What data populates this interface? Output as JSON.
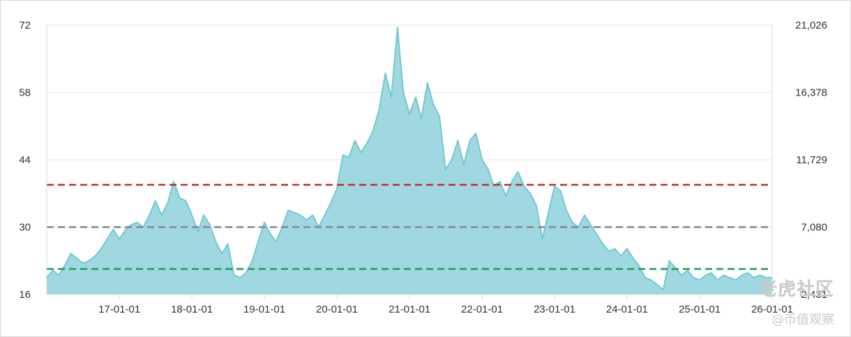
{
  "chart_data": {
    "type": "area",
    "x_ticks": [
      "17-01-01",
      "18-01-01",
      "19-01-01",
      "20-01-01",
      "21-01-01",
      "22-01-01",
      "23-01-01",
      "24-01-01",
      "25-01-01",
      "26-01-01"
    ],
    "x_range": [
      "2016-01-01",
      "2026-01-01"
    ],
    "y_left_ticks": [
      "16",
      "30",
      "44",
      "58",
      "72"
    ],
    "y_left_range": [
      16,
      72
    ],
    "y_right_ticks": [
      "2,431",
      "7,080",
      "11,729",
      "16,378",
      "21,026"
    ],
    "y_right_range": [
      2431,
      21026
    ],
    "grid": "horizontal",
    "reference_lines": [
      {
        "value": 38.8,
        "color": "#c0282d",
        "style": "dashed"
      },
      {
        "value": 30,
        "color": "#7f8790",
        "style": "dashed"
      },
      {
        "value": 21.3,
        "color": "#1f9b55",
        "style": "dashed"
      }
    ],
    "series": [
      {
        "axis": "left",
        "fill": "#9fd8e0",
        "stroke": "#74c7d2",
        "points": [
          [
            "2016-01-01",
            19.5
          ],
          [
            "2016-02-01",
            21.0
          ],
          [
            "2016-03-01",
            20.0
          ],
          [
            "2016-04-01",
            22.0
          ],
          [
            "2016-05-01",
            24.5
          ],
          [
            "2016-06-01",
            23.5
          ],
          [
            "2016-07-01",
            22.5
          ],
          [
            "2016-08-01",
            23.0
          ],
          [
            "2016-09-01",
            24.0
          ],
          [
            "2016-10-01",
            25.5
          ],
          [
            "2016-11-01",
            27.5
          ],
          [
            "2016-12-01",
            29.5
          ],
          [
            "2017-01-01",
            27.5
          ],
          [
            "2017-02-01",
            29.5
          ],
          [
            "2017-03-01",
            30.5
          ],
          [
            "2017-04-01",
            31.0
          ],
          [
            "2017-05-01",
            30.0
          ],
          [
            "2017-06-01",
            32.5
          ],
          [
            "2017-07-01",
            35.5
          ],
          [
            "2017-08-01",
            32.5
          ],
          [
            "2017-09-01",
            35.0
          ],
          [
            "2017-10-01",
            39.5
          ],
          [
            "2017-11-01",
            36.0
          ],
          [
            "2017-12-01",
            35.5
          ],
          [
            "2018-01-01",
            32.5
          ],
          [
            "2018-02-01",
            29.0
          ],
          [
            "2018-03-01",
            32.5
          ],
          [
            "2018-04-01",
            30.5
          ],
          [
            "2018-05-01",
            27.0
          ],
          [
            "2018-06-01",
            24.5
          ],
          [
            "2018-07-01",
            26.5
          ],
          [
            "2018-08-01",
            20.0
          ],
          [
            "2018-09-01",
            19.5
          ],
          [
            "2018-10-01",
            20.5
          ],
          [
            "2018-11-01",
            23.0
          ],
          [
            "2018-12-01",
            27.0
          ],
          [
            "2019-01-01",
            31.0
          ],
          [
            "2019-02-01",
            28.5
          ],
          [
            "2019-03-01",
            27.0
          ],
          [
            "2019-04-01",
            30.0
          ],
          [
            "2019-05-01",
            33.5
          ],
          [
            "2019-06-01",
            33.0
          ],
          [
            "2019-07-01",
            32.5
          ],
          [
            "2019-08-01",
            31.5
          ],
          [
            "2019-09-01",
            32.5
          ],
          [
            "2019-10-01",
            30.0
          ],
          [
            "2019-11-01",
            32.5
          ],
          [
            "2019-12-01",
            35.0
          ],
          [
            "2020-01-01",
            38.0
          ],
          [
            "2020-02-01",
            45.0
          ],
          [
            "2020-03-01",
            44.5
          ],
          [
            "2020-04-01",
            48.0
          ],
          [
            "2020-05-01",
            45.5
          ],
          [
            "2020-06-01",
            47.5
          ],
          [
            "2020-07-01",
            50.0
          ],
          [
            "2020-08-01",
            54.5
          ],
          [
            "2020-09-01",
            62.0
          ],
          [
            "2020-10-01",
            57.0
          ],
          [
            "2020-11-01",
            71.5
          ],
          [
            "2020-12-01",
            58.0
          ],
          [
            "2021-01-01",
            53.5
          ],
          [
            "2021-02-01",
            57.0
          ],
          [
            "2021-03-01",
            52.5
          ],
          [
            "2021-04-01",
            60.0
          ],
          [
            "2021-05-01",
            55.5
          ],
          [
            "2021-06-01",
            53.0
          ],
          [
            "2021-07-01",
            42.0
          ],
          [
            "2021-08-01",
            44.0
          ],
          [
            "2021-09-01",
            48.0
          ],
          [
            "2021-10-01",
            43.0
          ],
          [
            "2021-11-01",
            48.0
          ],
          [
            "2021-12-01",
            49.5
          ],
          [
            "2022-01-01",
            44.0
          ],
          [
            "2022-02-01",
            42.0
          ],
          [
            "2022-03-01",
            38.5
          ],
          [
            "2022-04-01",
            39.5
          ],
          [
            "2022-05-01",
            36.5
          ],
          [
            "2022-06-01",
            39.5
          ],
          [
            "2022-07-01",
            41.5
          ],
          [
            "2022-08-01",
            38.5
          ],
          [
            "2022-09-01",
            37.0
          ],
          [
            "2022-10-01",
            34.5
          ],
          [
            "2022-11-01",
            27.5
          ],
          [
            "2022-12-01",
            33.0
          ],
          [
            "2023-01-01",
            38.5
          ],
          [
            "2023-02-01",
            37.5
          ],
          [
            "2023-03-01",
            33.5
          ],
          [
            "2023-04-01",
            31.0
          ],
          [
            "2023-05-01",
            30.0
          ],
          [
            "2023-06-01",
            32.5
          ],
          [
            "2023-07-01",
            30.5
          ],
          [
            "2023-08-01",
            28.5
          ],
          [
            "2023-09-01",
            26.5
          ],
          [
            "2023-10-01",
            25.0
          ],
          [
            "2023-11-01",
            25.5
          ],
          [
            "2023-12-01",
            24.0
          ],
          [
            "2024-01-01",
            25.5
          ],
          [
            "2024-02-01",
            23.5
          ],
          [
            "2024-03-01",
            22.0
          ],
          [
            "2024-04-01",
            19.5
          ],
          [
            "2024-05-01",
            19.0
          ],
          [
            "2024-06-01",
            18.0
          ],
          [
            "2024-07-01",
            17.0
          ],
          [
            "2024-08-01",
            23.0
          ],
          [
            "2024-09-01",
            21.5
          ],
          [
            "2024-10-01",
            20.0
          ],
          [
            "2024-11-01",
            21.0
          ],
          [
            "2024-12-01",
            19.5
          ],
          [
            "2025-01-01",
            19.0
          ],
          [
            "2025-02-01",
            20.0
          ],
          [
            "2025-03-01",
            20.5
          ],
          [
            "2025-04-01",
            19.0
          ],
          [
            "2025-05-01",
            20.0
          ],
          [
            "2025-06-01",
            19.5
          ],
          [
            "2025-07-01",
            19.0
          ],
          [
            "2025-08-01",
            20.0
          ],
          [
            "2025-09-01",
            20.5
          ],
          [
            "2025-10-01",
            19.5
          ],
          [
            "2025-11-01",
            20.0
          ],
          [
            "2025-12-01",
            19.5
          ],
          [
            "2026-01-01",
            19.5
          ]
        ]
      }
    ]
  },
  "watermark": {
    "logo_text": "老虎社区",
    "handle": "@币值观察"
  }
}
